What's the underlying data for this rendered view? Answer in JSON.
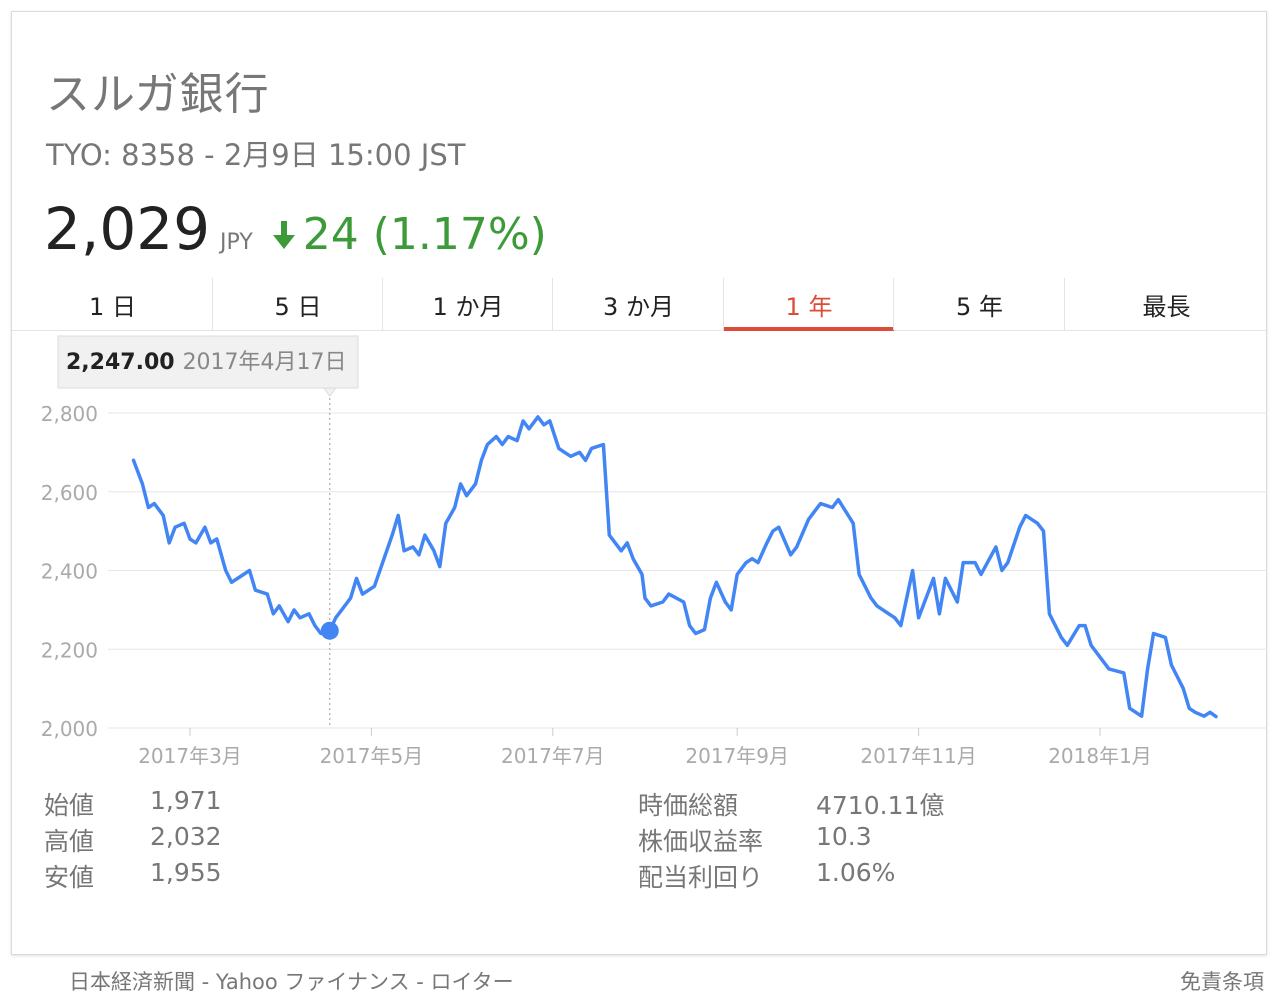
{
  "header": {
    "company": "スルガ銀行",
    "ticker_line": "TYO: 8358 - 2月9日 15:00 JST",
    "price": "2,029",
    "currency": "JPY",
    "change": "24 (1.17%)",
    "change_direction": "down",
    "change_color": "#3d9a39"
  },
  "tabs": [
    {
      "label": "1 日",
      "active": false
    },
    {
      "label": "5 日",
      "active": false
    },
    {
      "label": "1 か月",
      "active": false
    },
    {
      "label": "3 か月",
      "active": false
    },
    {
      "label": "1 年",
      "active": true
    },
    {
      "label": "5 年",
      "active": false
    },
    {
      "label": "最長",
      "active": false
    }
  ],
  "chart_data": {
    "type": "line",
    "title": "",
    "xlabel": "",
    "ylabel": "",
    "ylim": [
      2000,
      2800
    ],
    "y_ticks": [
      "2,800",
      "2,600",
      "2,400",
      "2,200",
      "2,000"
    ],
    "x_ticks": [
      {
        "label": "2017年3月",
        "date": "2017-03-01"
      },
      {
        "label": "2017年5月",
        "date": "2017-05-01"
      },
      {
        "label": "2017年7月",
        "date": "2017-07-01"
      },
      {
        "label": "2017年9月",
        "date": "2017-09-01"
      },
      {
        "label": "2017年11月",
        "date": "2017-11-01"
      },
      {
        "label": "2018年1月",
        "date": "2018-01-01"
      }
    ],
    "grid": true,
    "line_color": "#4285f4",
    "series": [
      {
        "x": [
          "2017-02-10",
          "2017-02-13",
          "2017-02-15",
          "2017-02-17",
          "2017-02-20",
          "2017-02-22",
          "2017-02-24",
          "2017-02-27",
          "2017-03-01",
          "2017-03-03",
          "2017-03-06",
          "2017-03-08",
          "2017-03-10",
          "2017-03-13",
          "2017-03-15",
          "2017-03-17",
          "2017-03-21",
          "2017-03-23",
          "2017-03-27",
          "2017-03-29",
          "2017-03-31",
          "2017-04-03",
          "2017-04-05",
          "2017-04-07",
          "2017-04-10",
          "2017-04-12",
          "2017-04-14",
          "2017-04-17",
          "2017-04-19",
          "2017-04-21",
          "2017-04-24",
          "2017-04-26",
          "2017-04-28",
          "2017-05-02",
          "2017-05-08",
          "2017-05-10",
          "2017-05-12",
          "2017-05-15",
          "2017-05-17",
          "2017-05-19",
          "2017-05-22",
          "2017-05-24",
          "2017-05-26",
          "2017-05-29",
          "2017-05-31",
          "2017-06-02",
          "2017-06-05",
          "2017-06-07",
          "2017-06-09",
          "2017-06-12",
          "2017-06-14",
          "2017-06-16",
          "2017-06-19",
          "2017-06-21",
          "2017-06-23",
          "2017-06-26",
          "2017-06-28",
          "2017-06-30",
          "2017-07-03",
          "2017-07-05",
          "2017-07-07",
          "2017-07-10",
          "2017-07-12",
          "2017-07-14",
          "2017-07-18",
          "2017-07-20",
          "2017-07-24",
          "2017-07-26",
          "2017-07-28",
          "2017-07-31",
          "2017-08-01",
          "2017-08-03",
          "2017-08-07",
          "2017-08-09",
          "2017-08-14",
          "2017-08-16",
          "2017-08-18",
          "2017-08-21",
          "2017-08-23",
          "2017-08-25",
          "2017-08-28",
          "2017-08-30",
          "2017-09-01",
          "2017-09-04",
          "2017-09-06",
          "2017-09-08",
          "2017-09-11",
          "2017-09-13",
          "2017-09-15",
          "2017-09-19",
          "2017-09-21",
          "2017-09-25",
          "2017-09-27",
          "2017-09-29",
          "2017-10-03",
          "2017-10-05",
          "2017-10-10",
          "2017-10-12",
          "2017-10-16",
          "2017-10-18",
          "2017-10-20",
          "2017-10-24",
          "2017-10-26",
          "2017-10-30",
          "2017-11-01",
          "2017-11-06",
          "2017-11-08",
          "2017-11-10",
          "2017-11-14",
          "2017-11-16",
          "2017-11-20",
          "2017-11-22",
          "2017-11-27",
          "2017-11-29",
          "2017-12-01",
          "2017-12-05",
          "2017-12-07",
          "2017-12-11",
          "2017-12-13",
          "2017-12-15",
          "2017-12-19",
          "2017-12-21",
          "2017-12-25",
          "2017-12-27",
          "2017-12-29",
          "2018-01-04",
          "2018-01-09",
          "2018-01-11",
          "2018-01-15",
          "2018-01-17",
          "2018-01-19",
          "2018-01-23",
          "2018-01-25",
          "2018-01-29",
          "2018-01-31",
          "2018-02-02",
          "2018-02-05",
          "2018-02-07",
          "2018-02-09"
        ],
        "y": [
          2680,
          2620,
          2560,
          2570,
          2540,
          2470,
          2510,
          2520,
          2480,
          2470,
          2510,
          2470,
          2480,
          2400,
          2370,
          2380,
          2400,
          2350,
          2340,
          2290,
          2310,
          2270,
          2300,
          2280,
          2290,
          2260,
          2240,
          2247,
          2280,
          2300,
          2330,
          2380,
          2340,
          2360,
          2490,
          2540,
          2450,
          2460,
          2440,
          2490,
          2450,
          2410,
          2520,
          2560,
          2620,
          2590,
          2620,
          2680,
          2720,
          2740,
          2720,
          2740,
          2730,
          2780,
          2760,
          2790,
          2770,
          2780,
          2710,
          2700,
          2690,
          2700,
          2680,
          2710,
          2720,
          2490,
          2450,
          2470,
          2430,
          2390,
          2330,
          2310,
          2320,
          2340,
          2320,
          2260,
          2240,
          2250,
          2330,
          2370,
          2320,
          2300,
          2390,
          2420,
          2430,
          2420,
          2470,
          2500,
          2510,
          2440,
          2460,
          2530,
          2550,
          2570,
          2560,
          2580,
          2520,
          2390,
          2330,
          2310,
          2300,
          2280,
          2260,
          2400,
          2280,
          2380,
          2290,
          2380,
          2320,
          2420,
          2420,
          2390,
          2460,
          2400,
          2420,
          2510,
          2540,
          2520,
          2500,
          2290,
          2230,
          2210,
          2260,
          2260,
          2210,
          2150,
          2140,
          2050,
          2030,
          2150,
          2240,
          2230,
          2160,
          2100,
          2050,
          2040,
          2030,
          2040,
          2029
        ]
      }
    ],
    "highlight": {
      "date": "2017-04-17",
      "value": 2247.0
    }
  },
  "tooltip": {
    "value": "2,247.00",
    "date": "2017年4月17日"
  },
  "stats_left": [
    {
      "label": "始値",
      "value": "1,971"
    },
    {
      "label": "高値",
      "value": "2,032"
    },
    {
      "label": "安値",
      "value": "1,955"
    }
  ],
  "stats_right": [
    {
      "label": "時価総額",
      "value": "4710.11億"
    },
    {
      "label": "株価収益率",
      "value": "10.3"
    },
    {
      "label": "配当利回り",
      "value": "1.06%"
    }
  ],
  "footer": {
    "sources": "日本経済新聞 - Yahoo ファイナンス - ロイター",
    "disclaimer": "免責条項"
  }
}
